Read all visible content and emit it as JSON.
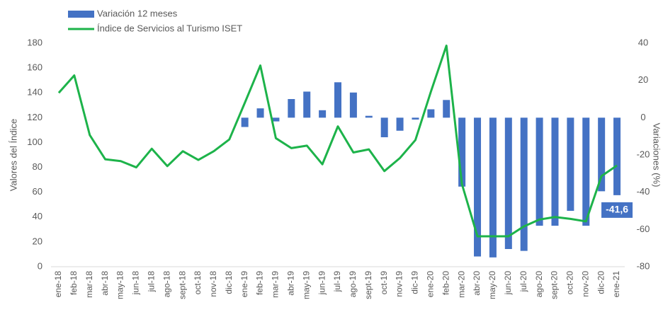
{
  "chart_data": {
    "type": "bar-line",
    "categories": [
      "ene-18",
      "feb-18",
      "mar-18",
      "abr-18",
      "may-18",
      "jun-18",
      "jul-18",
      "ago-18",
      "sept-18",
      "oct-18",
      "nov-18",
      "dic-18",
      "ene-19",
      "feb-19",
      "mar-19",
      "abr-19",
      "may-19",
      "jun-19",
      "jul-19",
      "ago-19",
      "sept-19",
      "oct-19",
      "nov-19",
      "dic-19",
      "ene-20",
      "feb-20",
      "mar-20",
      "abr-20",
      "may-20",
      "jun-20",
      "jul-20",
      "ago-20",
      "sept-20",
      "oct-20",
      "nov-20",
      "dic-20",
      "ene-21"
    ],
    "series": [
      {
        "name": "Variación 12 meses",
        "type": "bar",
        "axis": "y2",
        "color": "#4472c4",
        "values": [
          null,
          null,
          null,
          null,
          null,
          null,
          null,
          null,
          null,
          null,
          null,
          null,
          -5,
          5,
          -2,
          10,
          14,
          4,
          19,
          13.5,
          1,
          -10.5,
          -7,
          -1,
          4.5,
          9.5,
          -37,
          -74.5,
          -75,
          -70.5,
          -71.5,
          -58,
          -58,
          -50,
          -58,
          -39.5,
          -41.6
        ],
        "value_labels": [
          null,
          null,
          null,
          null,
          null,
          null,
          null,
          null,
          null,
          null,
          null,
          null,
          null,
          null,
          null,
          null,
          null,
          null,
          null,
          null,
          null,
          null,
          null,
          null,
          null,
          null,
          null,
          null,
          null,
          null,
          null,
          null,
          null,
          null,
          null,
          null,
          "-41,6"
        ]
      },
      {
        "name": "Índice de Servicios al Turismo ISET",
        "type": "line",
        "axis": "y",
        "color": "#1db34a",
        "values": [
          140,
          154,
          106,
          86.5,
          85,
          80,
          95,
          81,
          93,
          86,
          93,
          102.5,
          132,
          162,
          103.5,
          95.5,
          97.5,
          82.5,
          113,
          92,
          94.5,
          77,
          87.5,
          102,
          141,
          178,
          66.5,
          24.5,
          24.5,
          24.5,
          32.5,
          38,
          40,
          38.5,
          36.5,
          73,
          81.5
        ]
      }
    ],
    "ylabel": "Valores del Índice",
    "y2label": "Variaciones (%)",
    "ylim": [
      0,
      180
    ],
    "yticks": [
      0,
      20,
      40,
      60,
      80,
      100,
      120,
      140,
      160,
      180
    ],
    "y2lim": [
      -80,
      40
    ],
    "y2ticks": [
      -80,
      -60,
      -40,
      -20,
      0,
      20,
      40
    ],
    "legend": "top-left"
  }
}
